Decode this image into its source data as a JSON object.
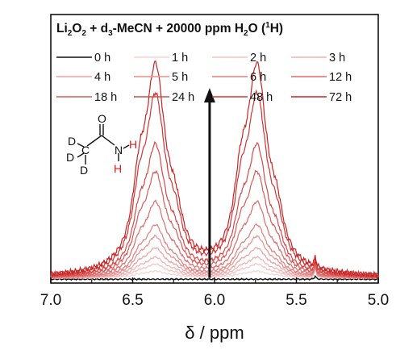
{
  "chart_data": {
    "type": "line",
    "title_parts": {
      "t1": "Li",
      "t1s": "2",
      "t2": "O",
      "t2s": "2",
      "t3": " + d",
      "t3s": "3",
      "t4": "-MeCN + 20000 ppm H",
      "t4s": "2",
      "t5": "O (",
      "t5s": "1",
      "t6": "H)"
    },
    "xlabel": "δ / ppm",
    "ylabel": "",
    "x_axis_reversed": true,
    "xlim": [
      7.0,
      5.0
    ],
    "ylim": [
      0,
      1.05
    ],
    "x_ticks": [
      "7.0",
      "6.5",
      "6.0",
      "5.5",
      "5.0"
    ],
    "x_tick_values": [
      7.0,
      6.5,
      6.0,
      5.5,
      5.0
    ],
    "grid": false,
    "legend_position": "top",
    "peaks_ppm": [
      6.36,
      5.74
    ],
    "arrow": {
      "x": 6.03,
      "from_y": 0.02,
      "to_y": 0.75,
      "meaning": "increasing time"
    },
    "molecule_labels": {
      "o": "O",
      "d1": "D",
      "d2": "D",
      "d3": "D",
      "c": "C",
      "n": "N",
      "h1": "H",
      "h2": "H"
    },
    "series": [
      {
        "name": "0 h",
        "color": "#111111",
        "peak_height": 0.0,
        "baseline": 0.015
      },
      {
        "name": "1 h",
        "color": "#f6d3d3",
        "peak_height": 0.03,
        "baseline": 0.02
      },
      {
        "name": "2 h",
        "color": "#f2c4c4",
        "peak_height": 0.06,
        "baseline": 0.02
      },
      {
        "name": "3 h",
        "color": "#eeb3b3",
        "peak_height": 0.09,
        "baseline": 0.02
      },
      {
        "name": "4 h",
        "color": "#e9a2a2",
        "peak_height": 0.13,
        "baseline": 0.02
      },
      {
        "name": "5 h",
        "color": "#e59191",
        "peak_height": 0.18,
        "baseline": 0.02
      },
      {
        "name": "6 h",
        "color": "#e07f7f",
        "peak_height": 0.23,
        "baseline": 0.02
      },
      {
        "name": "12 h",
        "color": "#dc6c6c",
        "peak_height": 0.33,
        "baseline": 0.02
      },
      {
        "name": "18 h",
        "color": "#d85a5a",
        "peak_height": 0.46,
        "baseline": 0.02
      },
      {
        "name": "24 h",
        "color": "#d44848",
        "peak_height": 0.58,
        "baseline": 0.02
      },
      {
        "name": "48 h",
        "color": "#cf3535",
        "peak_height": 0.8,
        "baseline": 0.02
      },
      {
        "name": "72 h",
        "color": "#c82424",
        "peak_height": 0.93,
        "baseline": 0.02
      }
    ]
  }
}
